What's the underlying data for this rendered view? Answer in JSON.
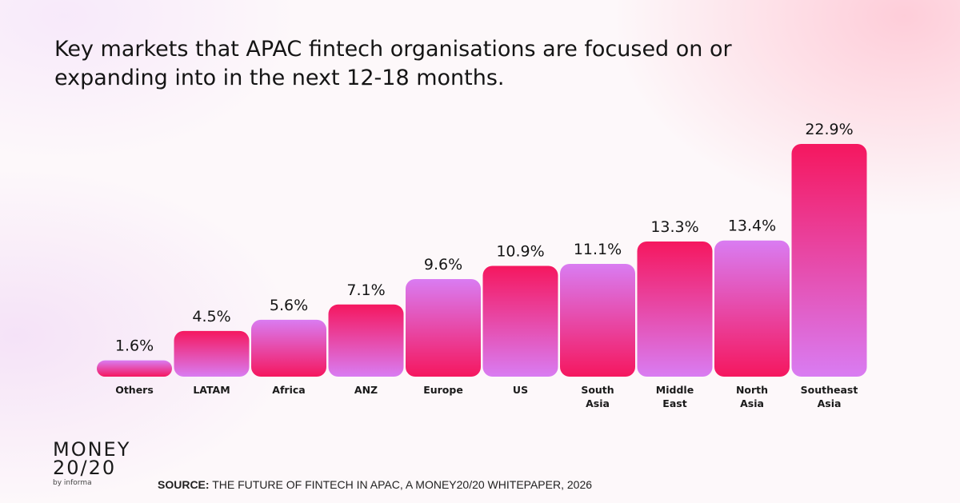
{
  "title": "Key markets that APAC fintech organisations are focused on or expanding into in the next 12-18 months.",
  "chart_data": {
    "type": "bar",
    "title": "Key markets that APAC fintech organisations are focused on or expanding into in the next 12-18 months.",
    "categories": [
      "Others",
      "LATAM",
      "Africa",
      "ANZ",
      "Europe",
      "US",
      "South Asia",
      "Middle East",
      "North Asia",
      "Southeast Asia"
    ],
    "values": [
      1.6,
      4.5,
      5.6,
      7.1,
      9.6,
      10.9,
      11.1,
      13.3,
      13.4,
      22.9
    ],
    "data_labels": [
      "1.6%",
      "4.5%",
      "5.6%",
      "7.1%",
      "9.6%",
      "10.9%",
      "11.1%",
      "13.3%",
      "13.4%",
      "22.9%"
    ],
    "xlabel": "",
    "ylabel": "",
    "ylim": [
      0,
      23
    ],
    "grid": false,
    "colors": {
      "pink": "#f5175f",
      "violet": "#d97cf2"
    }
  },
  "logo": {
    "line1": "MONEY",
    "line2": "20/20",
    "line3": "by informa"
  },
  "source": {
    "label": "SOURCE:",
    "text": " THE FUTURE OF FINTECH IN APAC, A MONEY20/20 WHITEPAPER, 2026"
  }
}
